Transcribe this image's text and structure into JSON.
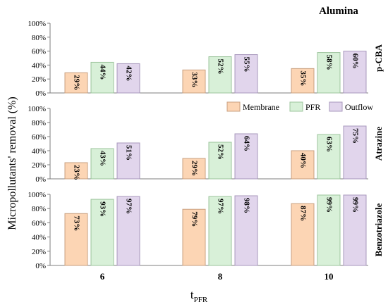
{
  "chart_data": {
    "type": "bar",
    "title": "Alumina",
    "ylabel": "Micropollutants' removal (%)",
    "xlabel": "t",
    "xlabel_sub": "PFR",
    "categories": [
      "6",
      "8",
      "10"
    ],
    "ylim": [
      0,
      100
    ],
    "yticks": [
      "0%",
      "20%",
      "40%",
      "60%",
      "80%",
      "100%"
    ],
    "legend_position": "top-right of middle panel",
    "series_names": [
      "Membrane",
      "PFR",
      "Outflow"
    ],
    "colors": {
      "Membrane": "#fcd5b4",
      "PFR": "#d8f0d8",
      "Outflow": "#e1d5ec",
      "Membrane_stroke": "#c9a080",
      "PFR_stroke": "#9cc49c",
      "Outflow_stroke": "#a898bc"
    },
    "panels": [
      {
        "name": "p-CBA",
        "series": [
          {
            "name": "Membrane",
            "values": [
              29,
              33,
              35
            ],
            "labels": [
              "29%",
              "33%",
              "35%"
            ]
          },
          {
            "name": "PFR",
            "values": [
              44,
              52,
              58
            ],
            "labels": [
              "44%",
              "52%",
              "58%"
            ]
          },
          {
            "name": "Outflow",
            "values": [
              42,
              55,
              60
            ],
            "labels": [
              "42%",
              "55%",
              "60%"
            ]
          }
        ]
      },
      {
        "name": "Atrazine",
        "series": [
          {
            "name": "Membrane",
            "values": [
              23,
              29,
              40
            ],
            "labels": [
              "23%",
              "29%",
              "40%"
            ]
          },
          {
            "name": "PFR",
            "values": [
              43,
              52,
              63
            ],
            "labels": [
              "43%",
              "52%",
              "63%"
            ]
          },
          {
            "name": "Outflow",
            "values": [
              51,
              64,
              75
            ],
            "labels": [
              "51%",
              "64%",
              "75%"
            ]
          }
        ]
      },
      {
        "name": "Benzotriazole",
        "series": [
          {
            "name": "Membrane",
            "values": [
              73,
              79,
              87
            ],
            "labels": [
              "73%",
              "79%",
              "87%"
            ]
          },
          {
            "name": "PFR",
            "values": [
              93,
              97,
              99
            ],
            "labels": [
              "93%",
              "97%",
              "99%"
            ]
          },
          {
            "name": "Outflow",
            "values": [
              97,
              98,
              99
            ],
            "labels": [
              "97%",
              "98%",
              "99%"
            ]
          }
        ]
      }
    ]
  }
}
